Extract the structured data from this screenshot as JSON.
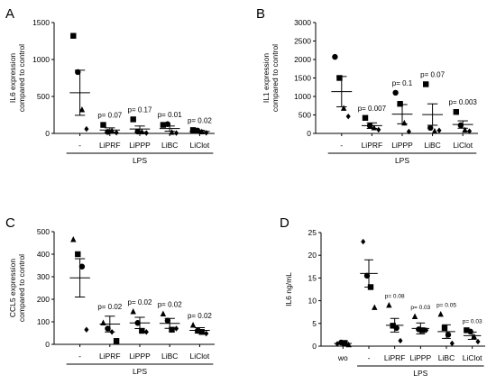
{
  "chart_data": [
    {
      "type": "scatter",
      "panel": "A",
      "ylabel": [
        "IL6 expression",
        "compared to control"
      ],
      "ylim": [
        0,
        1500
      ],
      "yticks": [
        0,
        500,
        1000,
        1500
      ],
      "categories": [
        "-",
        "LiPRF",
        "LiPPP",
        "LiBC",
        "LiClot"
      ],
      "group_label": "LPS",
      "group_span": [
        0,
        4
      ],
      "pvalues": [
        "",
        "p= 0.07",
        "p= 0.17",
        "p= 0.01",
        "p= 0.02"
      ],
      "means": [
        550,
        45,
        60,
        65,
        28
      ],
      "sems": [
        305,
        30,
        40,
        35,
        15
      ],
      "points": [
        [
          {
            "y": 1320,
            "m": "square"
          },
          {
            "y": 830,
            "m": "circle"
          },
          {
            "y": 320,
            "m": "triangle"
          },
          {
            "y": 60,
            "m": "diamond"
          }
        ],
        [
          {
            "y": 115,
            "m": "square"
          },
          {
            "y": 20,
            "m": "circle"
          },
          {
            "y": 35,
            "m": "triangle"
          },
          {
            "y": 10,
            "m": "diamond"
          }
        ],
        [
          {
            "y": 190,
            "m": "square"
          },
          {
            "y": 25,
            "m": "circle"
          },
          {
            "y": 20,
            "m": "triangle"
          },
          {
            "y": 5,
            "m": "diamond"
          }
        ],
        [
          {
            "y": 115,
            "m": "square"
          },
          {
            "y": 125,
            "m": "circle"
          },
          {
            "y": 15,
            "m": "triangle"
          },
          {
            "y": 5,
            "m": "diamond"
          }
        ],
        [
          {
            "y": 45,
            "m": "square"
          },
          {
            "y": 38,
            "m": "circle"
          },
          {
            "y": 20,
            "m": "triangle"
          },
          {
            "y": 8,
            "m": "diamond"
          }
        ]
      ]
    },
    {
      "type": "scatter",
      "panel": "B",
      "ylabel": [
        "IL1 expression",
        "compared to control"
      ],
      "ylim": [
        0,
        3000
      ],
      "yticks": [
        0,
        500,
        1000,
        1500,
        2000,
        2500,
        3000
      ],
      "categories": [
        "-",
        "LiPRF",
        "LiPPP",
        "LiBC",
        "LiClot"
      ],
      "group_label": "LPS",
      "group_span": [
        0,
        4
      ],
      "pvalues": [
        "",
        "p= 0.007",
        "p= 0.1",
        "p= 0.07",
        "p= 0.003"
      ],
      "means": [
        1130,
        210,
        520,
        510,
        240
      ],
      "sems": [
        410,
        75,
        260,
        290,
        100
      ],
      "points": [
        [
          {
            "y": 2070,
            "m": "circle"
          },
          {
            "y": 1500,
            "m": "square"
          },
          {
            "y": 680,
            "m": "triangle"
          },
          {
            "y": 460,
            "m": "diamond"
          }
        ],
        [
          {
            "y": 420,
            "m": "square"
          },
          {
            "y": 210,
            "m": "circle"
          },
          {
            "y": 150,
            "m": "triangle"
          },
          {
            "y": 100,
            "m": "diamond"
          }
        ],
        [
          {
            "y": 1100,
            "m": "circle"
          },
          {
            "y": 800,
            "m": "square"
          },
          {
            "y": 280,
            "m": "triangle"
          },
          {
            "y": 50,
            "m": "diamond"
          }
        ],
        [
          {
            "y": 1330,
            "m": "square"
          },
          {
            "y": 150,
            "m": "circle"
          },
          {
            "y": 60,
            "m": "triangle"
          },
          {
            "y": 80,
            "m": "diamond"
          }
        ],
        [
          {
            "y": 580,
            "m": "square"
          },
          {
            "y": 220,
            "m": "circle"
          },
          {
            "y": 90,
            "m": "triangle"
          },
          {
            "y": 60,
            "m": "diamond"
          }
        ]
      ]
    },
    {
      "type": "scatter",
      "panel": "C",
      "ylabel": [
        "CCL5 expression",
        "compared to control"
      ],
      "ylim": [
        0,
        500
      ],
      "yticks": [
        0,
        100,
        200,
        300,
        400,
        500
      ],
      "categories": [
        "-",
        "LiPRF",
        "LiPPP",
        "LiBC",
        "LiClot"
      ],
      "group_label": "LPS",
      "group_span": [
        0,
        4
      ],
      "pvalues": [
        "",
        "p= 0.02",
        "p= 0.02",
        "p= 0.02",
        "p= 0.02"
      ],
      "means": [
        295,
        90,
        95,
        93,
        62
      ],
      "sems": [
        85,
        35,
        25,
        22,
        12
      ],
      "points": [
        [
          {
            "y": 465,
            "m": "triangle"
          },
          {
            "y": 400,
            "m": "square"
          },
          {
            "y": 345,
            "m": "circle"
          },
          {
            "y": 65,
            "m": "diamond"
          }
        ],
        [
          {
            "y": 95,
            "m": "triangle"
          },
          {
            "y": 70,
            "m": "circle"
          },
          {
            "y": 55,
            "m": "diamond"
          },
          {
            "y": 15,
            "m": "square"
          }
        ],
        [
          {
            "y": 145,
            "m": "triangle"
          },
          {
            "y": 95,
            "m": "circle"
          },
          {
            "y": 60,
            "m": "square"
          },
          {
            "y": 55,
            "m": "diamond"
          }
        ],
        [
          {
            "y": 135,
            "m": "triangle"
          },
          {
            "y": 105,
            "m": "circle"
          },
          {
            "y": 65,
            "m": "square"
          },
          {
            "y": 70,
            "m": "diamond"
          }
        ],
        [
          {
            "y": 85,
            "m": "triangle"
          },
          {
            "y": 60,
            "m": "circle"
          },
          {
            "y": 55,
            "m": "square"
          },
          {
            "y": 48,
            "m": "diamond"
          }
        ]
      ]
    },
    {
      "type": "scatter",
      "panel": "D",
      "ylabel": [
        "IL6 ng/mL"
      ],
      "ylim": [
        0,
        25
      ],
      "yticks": [
        0,
        5,
        10,
        15,
        20,
        25
      ],
      "categories": [
        "wo",
        "-",
        "LiPRF",
        "LiPPP",
        "LiBC",
        "LiClot"
      ],
      "group_label": "LPS",
      "group_span": [
        1,
        5
      ],
      "pvalues": [
        "",
        "",
        "p= 0.08",
        "p= 0.03",
        "p= 0.05",
        "p= 0.03"
      ],
      "means": [
        0.6,
        16,
        4.6,
        3.9,
        3.2,
        2.3
      ],
      "sems": [
        0.2,
        3,
        1.5,
        1.2,
        1.5,
        0.8
      ],
      "points": [
        [
          {
            "y": 0.5,
            "m": "diamond"
          },
          {
            "y": 0.8,
            "m": "circle"
          },
          {
            "y": 0.7,
            "m": "square"
          },
          {
            "y": 0.3,
            "m": "triangle"
          }
        ],
        [
          {
            "y": 23,
            "m": "diamond"
          },
          {
            "y": 15.5,
            "m": "circle"
          },
          {
            "y": 13,
            "m": "square"
          },
          {
            "y": 8.5,
            "m": "triangle"
          }
        ],
        [
          {
            "y": 9,
            "m": "triangle"
          },
          {
            "y": 4.5,
            "m": "square"
          },
          {
            "y": 4,
            "m": "circle"
          },
          {
            "y": 1.2,
            "m": "diamond"
          }
        ],
        [
          {
            "y": 6.5,
            "m": "triangle"
          },
          {
            "y": 3.7,
            "m": "circle"
          },
          {
            "y": 3.5,
            "m": "square"
          },
          {
            "y": 3.5,
            "m": "diamond"
          }
        ],
        [
          {
            "y": 7,
            "m": "triangle"
          },
          {
            "y": 4,
            "m": "square"
          },
          {
            "y": 2.5,
            "m": "circle"
          },
          {
            "y": 0.6,
            "m": "diamond"
          }
        ],
        [
          {
            "y": 3.5,
            "m": "square"
          },
          {
            "y": 3.2,
            "m": "circle"
          },
          {
            "y": 2.1,
            "m": "triangle"
          },
          {
            "y": 1.0,
            "m": "diamond"
          }
        ]
      ]
    }
  ]
}
